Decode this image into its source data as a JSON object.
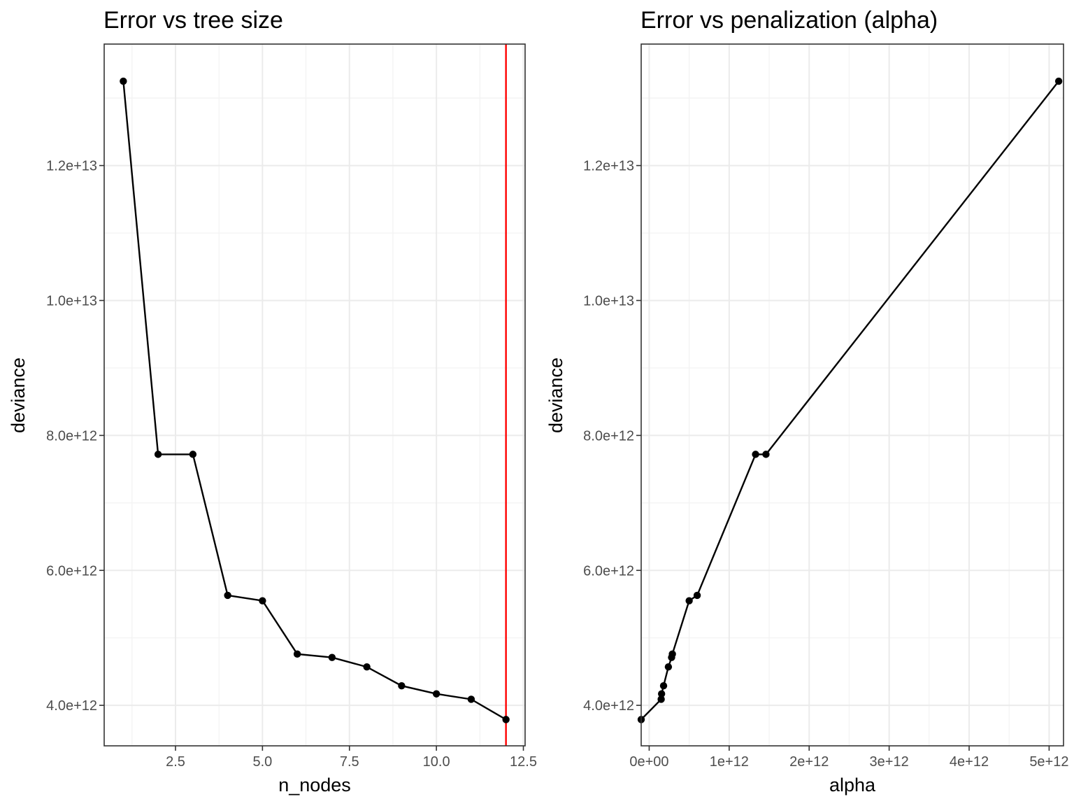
{
  "chart_data": [
    {
      "type": "line",
      "title": "Error vs tree size",
      "xlabel": "n_nodes",
      "ylabel": "deviance",
      "xlim": [
        0.45,
        12.55
      ],
      "ylim": [
        3400000000000.0,
        13800000000000.0
      ],
      "x_ticks": [
        {
          "value": 2.5,
          "label": "2.5"
        },
        {
          "value": 5.0,
          "label": "5.0"
        },
        {
          "value": 7.5,
          "label": "7.5"
        },
        {
          "value": 10.0,
          "label": "10.0"
        },
        {
          "value": 12.5,
          "label": "12.5"
        }
      ],
      "x_minor": [
        1.25,
        3.75,
        6.25,
        8.75,
        11.25
      ],
      "y_ticks": [
        {
          "value": 4000000000000.0,
          "label": "4.0e+12"
        },
        {
          "value": 6000000000000.0,
          "label": "6.0e+12"
        },
        {
          "value": 8000000000000.0,
          "label": "8.0e+12"
        },
        {
          "value": 10000000000000.0,
          "label": "1.0e+13"
        },
        {
          "value": 12000000000000.0,
          "label": "1.2e+13"
        }
      ],
      "y_minor": [
        5000000000000.0,
        7000000000000.0,
        9000000000000.0,
        11000000000000.0,
        13000000000000.0
      ],
      "grid": true,
      "legend": "none",
      "x": [
        1,
        2,
        3,
        4,
        5,
        6,
        7,
        8,
        9,
        10,
        11,
        12
      ],
      "series": [
        {
          "values": [
            13250000000000.0,
            7720000000000.0,
            7720000000000.0,
            5630000000000.0,
            5550000000000.0,
            4760000000000.0,
            4710000000000.0,
            4570000000000.0,
            4290000000000.0,
            4170000000000.0,
            4090000000000.0,
            3790000000000.0
          ]
        }
      ],
      "vline": {
        "x": 12,
        "color": "#ff0000"
      },
      "line_color": "#000000"
    },
    {
      "type": "line",
      "title": "Error vs penalization (alpha)",
      "xlabel": "alpha",
      "ylabel": "deviance",
      "xlim": [
        -100000000000.0,
        5180000000000.0
      ],
      "ylim": [
        3400000000000.0,
        13800000000000.0
      ],
      "x_ticks": [
        {
          "value": 0,
          "label": "0e+00"
        },
        {
          "value": 1000000000000.0,
          "label": "1e+12"
        },
        {
          "value": 2000000000000.0,
          "label": "2e+12"
        },
        {
          "value": 3000000000000.0,
          "label": "3e+12"
        },
        {
          "value": 4000000000000.0,
          "label": "4e+12"
        },
        {
          "value": 5000000000000.0,
          "label": "5e+12"
        }
      ],
      "x_minor": [
        500000000000.0,
        1500000000000.0,
        2500000000000.0,
        3500000000000.0,
        4500000000000.0
      ],
      "y_ticks": [
        {
          "value": 4000000000000.0,
          "label": "4.0e+12"
        },
        {
          "value": 6000000000000.0,
          "label": "6.0e+12"
        },
        {
          "value": 8000000000000.0,
          "label": "8.0e+12"
        },
        {
          "value": 10000000000000.0,
          "label": "1.0e+13"
        },
        {
          "value": 12000000000000.0,
          "label": "1.2e+13"
        }
      ],
      "y_minor": [
        5000000000000.0,
        7000000000000.0,
        9000000000000.0,
        11000000000000.0,
        13000000000000.0
      ],
      "grid": true,
      "legend": "none",
      "x": [
        -100000000000.0,
        150000000000.0,
        155000000000.0,
        180000000000.0,
        240000000000.0,
        280000000000.0,
        290000000000.0,
        500000000000.0,
        600000000000.0,
        1330000000000.0,
        1460000000000.0,
        5120000000000.0
      ],
      "series": [
        {
          "values": [
            3790000000000.0,
            4090000000000.0,
            4170000000000.0,
            4290000000000.0,
            4570000000000.0,
            4710000000000.0,
            4760000000000.0,
            5550000000000.0,
            5630000000000.0,
            7720000000000.0,
            7720000000000.0,
            13250000000000.0
          ]
        }
      ],
      "line_color": "#000000"
    }
  ]
}
